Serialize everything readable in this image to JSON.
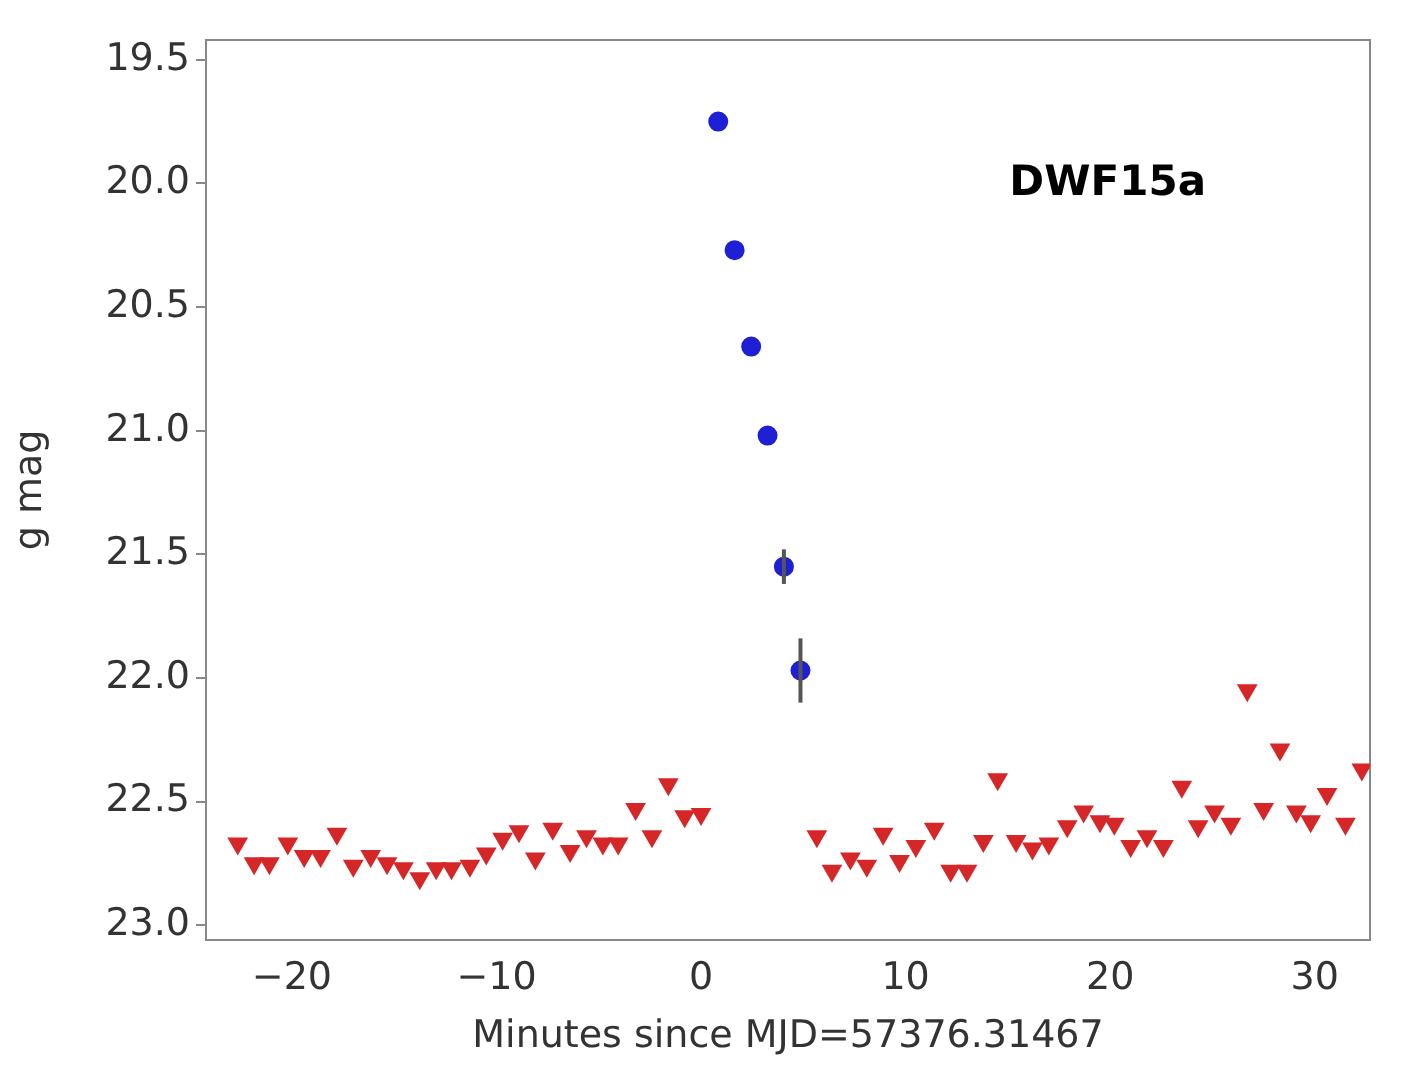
{
  "chart_data": {
    "type": "scatter",
    "xlabel": "Minutes since MJD=57376.31467",
    "ylabel": "g mag",
    "annotations": [
      "DWF15a"
    ],
    "xlim": [
      -24.2,
      32.7
    ],
    "xticks": [
      {
        "value": -20,
        "label": "−20"
      },
      {
        "value": -10,
        "label": "−10"
      },
      0,
      10,
      20,
      30
    ],
    "ylim": [
      23.06,
      19.42
    ],
    "yticks": [
      19.5,
      {
        "value": 20,
        "label": "20.0"
      },
      20.5,
      {
        "value": 21,
        "label": "21.0"
      },
      21.5,
      {
        "value": 22,
        "label": "22.0"
      },
      22.5,
      {
        "value": 23,
        "label": "23.0"
      }
    ],
    "grid": false,
    "legend": false,
    "series": [
      {
        "color": "#1f1fd6",
        "marker": "circle",
        "x": [
          0.84,
          1.64,
          2.45,
          3.25,
          4.05,
          4.86
        ],
        "values": [
          19.75,
          20.27,
          20.66,
          21.02,
          21.55,
          21.97
        ],
        "errors": [
          null,
          null,
          null,
          null,
          0.07,
          0.13
        ]
      },
      {
        "color": "#d62728",
        "marker": "triangle",
        "x": [
          -22.65,
          -21.85,
          -21.1,
          -20.2,
          -19.4,
          -18.6,
          -17.8,
          -17.0,
          -16.15,
          -15.35,
          -14.55,
          -13.75,
          -12.95,
          -12.2,
          -11.3,
          -10.5,
          -9.7,
          -8.9,
          -8.1,
          -7.25,
          -6.4,
          -5.6,
          -4.8,
          -4.05,
          -3.2,
          -2.4,
          -1.6,
          -0.8,
          0.0,
          5.66,
          6.4,
          7.3,
          8.1,
          8.9,
          9.7,
          10.5,
          11.4,
          12.2,
          13.0,
          13.8,
          14.5,
          15.4,
          16.2,
          17.0,
          17.9,
          18.7,
          19.5,
          20.2,
          21.0,
          21.8,
          22.6,
          23.5,
          24.3,
          25.1,
          25.9,
          26.7,
          27.5,
          28.3,
          29.1,
          29.8,
          30.6,
          31.5,
          32.3
        ],
        "values": [
          22.67,
          22.75,
          22.75,
          22.67,
          22.72,
          22.72,
          22.63,
          22.76,
          22.72,
          22.75,
          22.77,
          22.81,
          22.77,
          22.77,
          22.76,
          22.71,
          22.65,
          22.62,
          22.73,
          22.61,
          22.7,
          22.64,
          22.67,
          22.67,
          22.53,
          22.64,
          22.43,
          22.56,
          22.55,
          22.64,
          22.78,
          22.73,
          22.76,
          22.63,
          22.74,
          22.68,
          22.61,
          22.78,
          22.78,
          22.66,
          22.41,
          22.66,
          22.69,
          22.67,
          22.6,
          22.54,
          22.58,
          22.59,
          22.68,
          22.64,
          22.68,
          22.44,
          22.6,
          22.54,
          22.59,
          22.05,
          22.53,
          22.29,
          22.54,
          22.58,
          22.47,
          22.59,
          22.37
        ]
      }
    ]
  }
}
